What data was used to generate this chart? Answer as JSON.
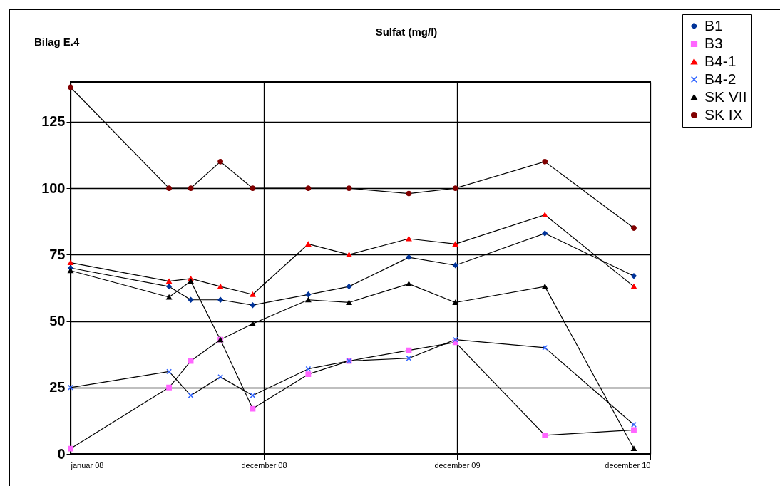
{
  "chart_data": {
    "type": "line",
    "title": "Sulfat (mg/l)",
    "annotations": [
      "Bilag E.4"
    ],
    "x": [
      "2008-01-01",
      "2008-07-05",
      "2008-08-15",
      "2008-10-10",
      "2008-12-10",
      "2009-03-25",
      "2009-06-10",
      "2009-10-01",
      "2009-12-28",
      "2010-06-15",
      "2010-11-30"
    ],
    "series": [
      {
        "name": "B1",
        "color": "#003399",
        "marker": "diamond",
        "values": [
          70,
          63,
          58,
          58,
          56,
          60,
          63,
          74,
          71,
          83,
          67
        ]
      },
      {
        "name": "B3",
        "color": "#ff66ff",
        "marker": "square",
        "values": [
          2,
          25,
          35,
          43,
          17,
          30,
          35,
          39,
          42,
          7,
          9
        ]
      },
      {
        "name": "B4-1",
        "color": "#ff0000",
        "marker": "triangle",
        "values": [
          72,
          65,
          66,
          63,
          60,
          79,
          75,
          81,
          79,
          90,
          63
        ]
      },
      {
        "name": "B4-2",
        "color": "#3366ff",
        "marker": "cross",
        "values": [
          25,
          31,
          22,
          29,
          22,
          32,
          35,
          36,
          43,
          40,
          11
        ]
      },
      {
        "name": "SK VII",
        "color": "#000000",
        "marker": "triangle",
        "values": [
          69,
          59,
          65,
          43,
          49,
          58,
          57,
          64,
          57,
          63,
          2
        ]
      },
      {
        "name": "SK IX",
        "color": "#800000",
        "marker": "circle",
        "values": [
          138,
          100,
          100,
          110,
          100,
          100,
          100,
          98,
          100,
          110,
          85
        ]
      }
    ],
    "xlim": [
      "2008-01-01",
      "2010-12-31"
    ],
    "xticks": [
      {
        "value": "2008-01-01",
        "label": "januar 08"
      },
      {
        "value": "2008-12-31",
        "label": "december 08"
      },
      {
        "value": "2009-12-31",
        "label": "december 09"
      },
      {
        "value": "2010-12-31",
        "label": "december 10"
      }
    ],
    "ylim": [
      0,
      140
    ],
    "yticks": [
      0,
      25,
      50,
      75,
      100,
      125
    ],
    "grid": true,
    "legend": "top right",
    "line_style": "solid"
  }
}
